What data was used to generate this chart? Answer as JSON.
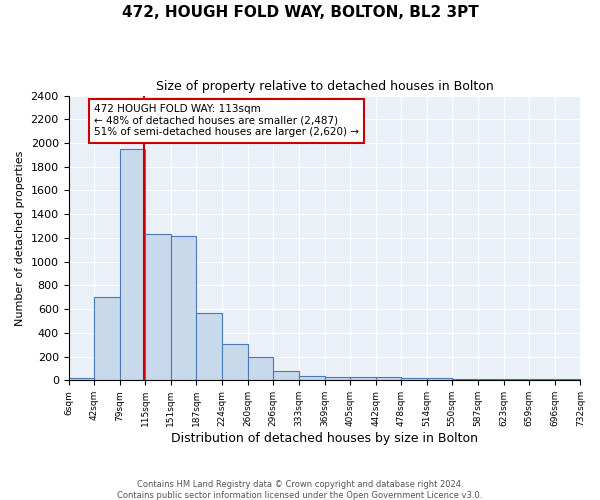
{
  "title": "472, HOUGH FOLD WAY, BOLTON, BL2 3PT",
  "subtitle": "Size of property relative to detached houses in Bolton",
  "xlabel": "Distribution of detached houses by size in Bolton",
  "ylabel": "Number of detached properties",
  "bar_values": [
    20,
    700,
    1950,
    1230,
    1220,
    570,
    305,
    200,
    80,
    40,
    30,
    30,
    30,
    20,
    20,
    15,
    15,
    15,
    15,
    15
  ],
  "bar_edges": [
    6,
    42,
    79,
    115,
    151,
    187,
    224,
    260,
    296,
    333,
    369,
    405,
    442,
    478,
    514,
    550,
    587,
    623,
    659,
    696,
    732
  ],
  "tick_labels": [
    "6sqm",
    "42sqm",
    "79sqm",
    "115sqm",
    "151sqm",
    "187sqm",
    "224sqm",
    "260sqm",
    "296sqm",
    "333sqm",
    "369sqm",
    "405sqm",
    "442sqm",
    "478sqm",
    "514sqm",
    "550sqm",
    "587sqm",
    "623sqm",
    "659sqm",
    "696sqm",
    "732sqm"
  ],
  "bar_color": "#c9d9ec",
  "bar_edge_color": "#4a7ab5",
  "red_line_x": 113,
  "annotation_text": "472 HOUGH FOLD WAY: 113sqm\n← 48% of detached houses are smaller (2,487)\n51% of semi-detached houses are larger (2,620) →",
  "annotation_box_color": "#ffffff",
  "annotation_box_edge": "#cc0000",
  "red_line_color": "#cc0000",
  "ylim": [
    0,
    2400
  ],
  "yticks": [
    0,
    200,
    400,
    600,
    800,
    1000,
    1200,
    1400,
    1600,
    1800,
    2000,
    2200,
    2400
  ],
  "bg_color": "#eaf0f8",
  "footer": "Contains HM Land Registry data © Crown copyright and database right 2024.\nContains public sector information licensed under the Open Government Licence v3.0.",
  "title_fontsize": 11,
  "subtitle_fontsize": 9
}
